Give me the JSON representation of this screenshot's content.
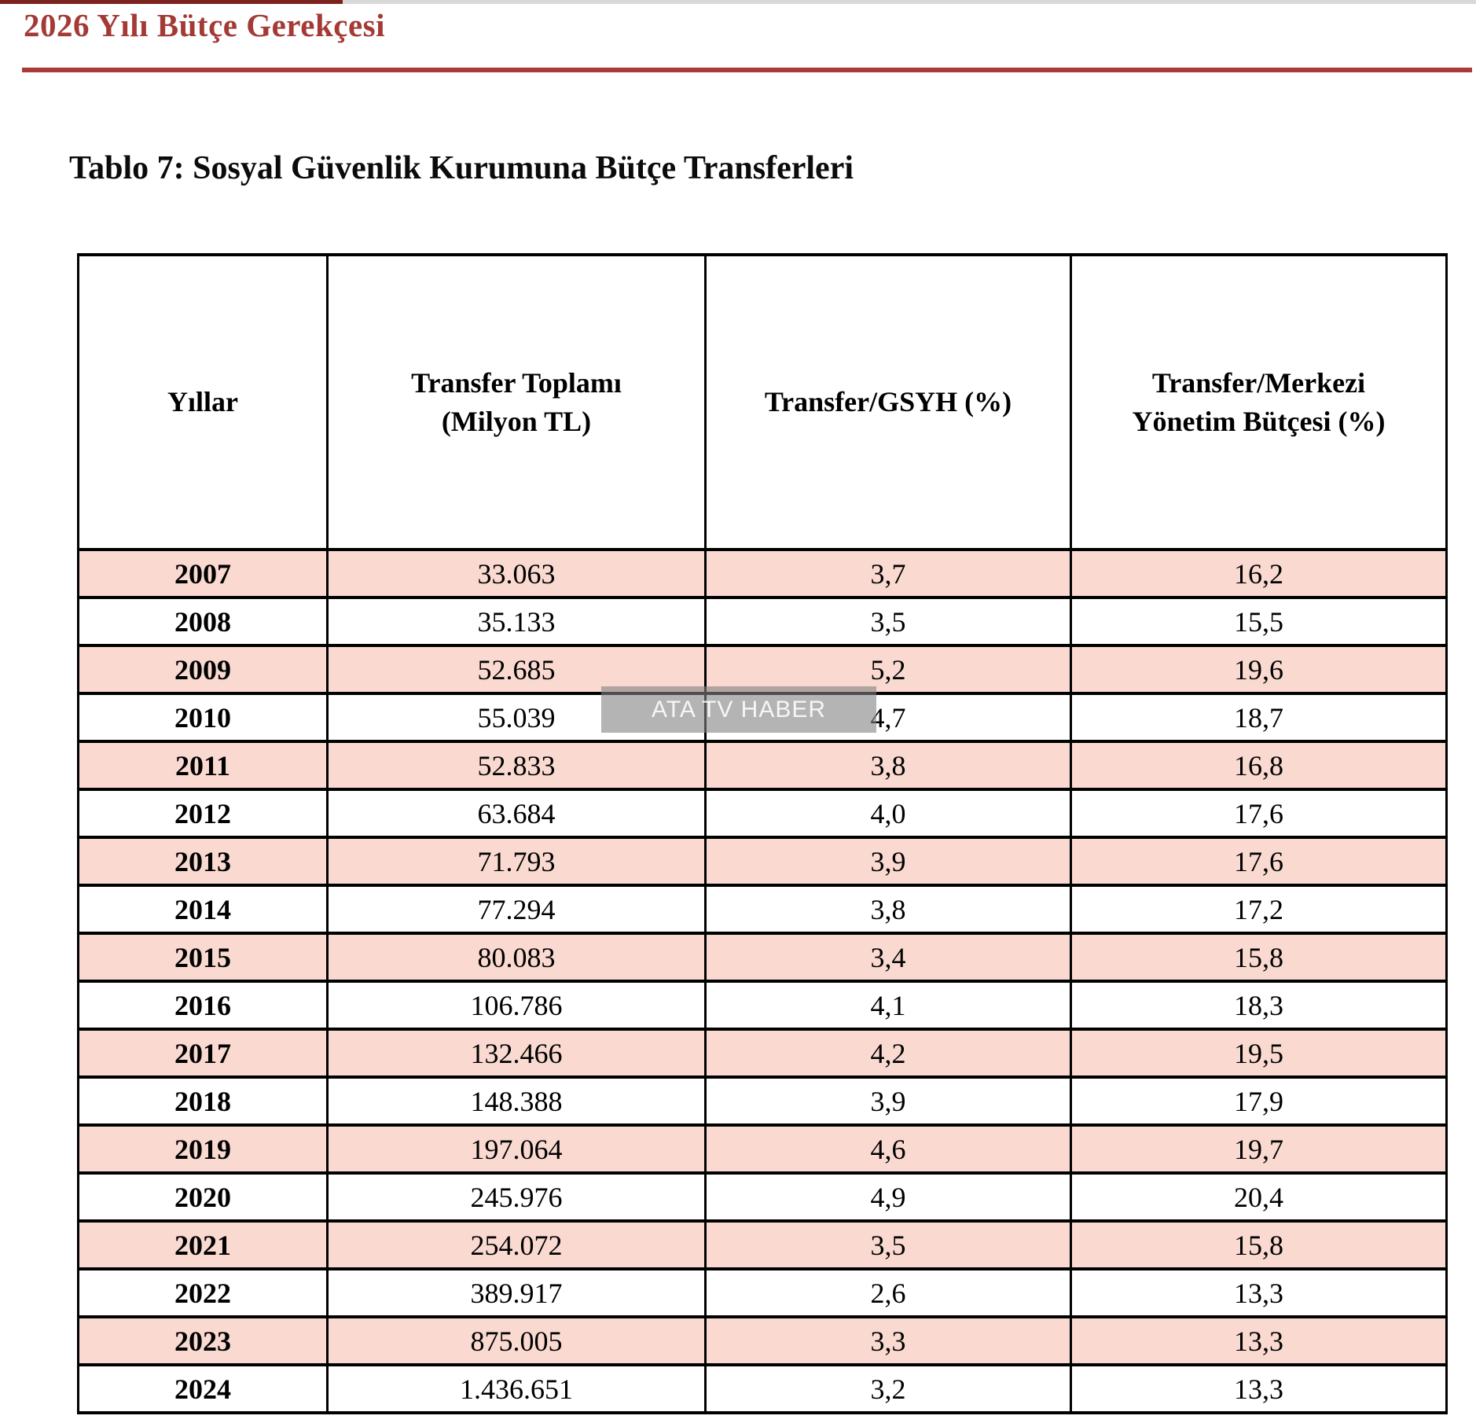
{
  "page": {
    "doc_header": "2026 Yılı Bütçe Gerekçesi",
    "table_title": "Tablo 7: Sosyal Güvenlik Kurumuna Bütçe Transferleri"
  },
  "watermark": {
    "text": "ATA TV HABER"
  },
  "colors": {
    "header_red": "#a33a36",
    "rule_red": "#a93a38",
    "row_pink": "#f9d9d0",
    "top_strip_red": "#7b211e",
    "top_strip_gray": "#d8d8d8",
    "border_black": "#000000"
  },
  "table": {
    "columns": [
      {
        "id": "yillar",
        "lines": [
          "Yıllar"
        ]
      },
      {
        "id": "toplam",
        "lines": [
          "Transfer Toplamı",
          "(Milyon TL)"
        ]
      },
      {
        "id": "gsyh",
        "lines": [
          "Transfer/GSYH (%)"
        ]
      },
      {
        "id": "merkezi",
        "lines": [
          "Transfer/Merkezi",
          "Yönetim Bütçesi (%)"
        ]
      }
    ],
    "rows": [
      {
        "year": "2007",
        "transfer": "33.063",
        "gsyh": "3,7",
        "merkezi": "16,2"
      },
      {
        "year": "2008",
        "transfer": "35.133",
        "gsyh": "3,5",
        "merkezi": "15,5"
      },
      {
        "year": "2009",
        "transfer": "52.685",
        "gsyh": "5,2",
        "merkezi": "19,6"
      },
      {
        "year": "2010",
        "transfer": "55.039",
        "gsyh": "4,7",
        "merkezi": "18,7"
      },
      {
        "year": "2011",
        "transfer": "52.833",
        "gsyh": "3,8",
        "merkezi": "16,8"
      },
      {
        "year": "2012",
        "transfer": "63.684",
        "gsyh": "4,0",
        "merkezi": "17,6"
      },
      {
        "year": "2013",
        "transfer": "71.793",
        "gsyh": "3,9",
        "merkezi": "17,6"
      },
      {
        "year": "2014",
        "transfer": "77.294",
        "gsyh": "3,8",
        "merkezi": "17,2"
      },
      {
        "year": "2015",
        "transfer": "80.083",
        "gsyh": "3,4",
        "merkezi": "15,8"
      },
      {
        "year": "2016",
        "transfer": "106.786",
        "gsyh": "4,1",
        "merkezi": "18,3"
      },
      {
        "year": "2017",
        "transfer": "132.466",
        "gsyh": "4,2",
        "merkezi": "19,5"
      },
      {
        "year": "2018",
        "transfer": "148.388",
        "gsyh": "3,9",
        "merkezi": "17,9"
      },
      {
        "year": "2019",
        "transfer": "197.064",
        "gsyh": "4,6",
        "merkezi": "19,7"
      },
      {
        "year": "2020",
        "transfer": "245.976",
        "gsyh": "4,9",
        "merkezi": "20,4"
      },
      {
        "year": "2021",
        "transfer": "254.072",
        "gsyh": "3,5",
        "merkezi": "15,8"
      },
      {
        "year": "2022",
        "transfer": "389.917",
        "gsyh": "2,6",
        "merkezi": "13,3"
      },
      {
        "year": "2023",
        "transfer": "875.005",
        "gsyh": "3,3",
        "merkezi": "13,3"
      },
      {
        "year": "2024",
        "transfer": "1.436.651",
        "gsyh": "3,2",
        "merkezi": "13,3"
      }
    ]
  }
}
